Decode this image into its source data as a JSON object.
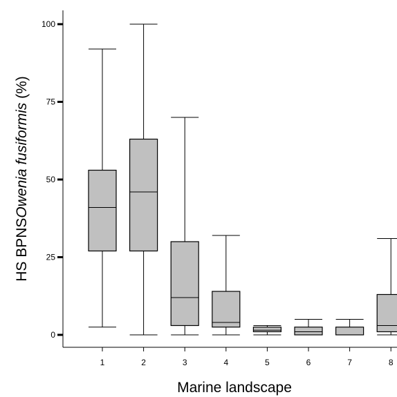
{
  "chart_data": {
    "type": "box",
    "xlabel": "Marine landscape",
    "ylabel": {
      "prefix": "HS BPNS",
      "species": "Owenia fusiformis",
      "suffix": " (%)"
    },
    "ylim": [
      0,
      100
    ],
    "yticks": [
      0,
      25,
      50,
      75,
      100
    ],
    "categories": [
      "1",
      "2",
      "3",
      "4",
      "5",
      "6",
      "7",
      "8"
    ],
    "boxes": [
      {
        "category": "1",
        "min": 2.5,
        "q1": 27,
        "median": 41,
        "q3": 53,
        "max": 92
      },
      {
        "category": "2",
        "min": 0,
        "q1": 27,
        "median": 46,
        "q3": 63,
        "max": 100
      },
      {
        "category": "3",
        "min": 0,
        "q1": 3,
        "median": 12,
        "q3": 30,
        "max": 70
      },
      {
        "category": "4",
        "min": 0,
        "q1": 2.5,
        "median": 4,
        "q3": 14,
        "max": 32
      },
      {
        "category": "5",
        "min": 0,
        "q1": 1,
        "median": 1.5,
        "q3": 2.5,
        "max": 3
      },
      {
        "category": "6",
        "min": 0,
        "q1": 0,
        "median": 1,
        "q3": 2.5,
        "max": 5
      },
      {
        "category": "7",
        "min": 0,
        "q1": 0,
        "median": 0,
        "q3": 2.5,
        "max": 5
      },
      {
        "category": "8",
        "min": 0,
        "q1": 1,
        "median": 3,
        "q3": 13,
        "max": 31
      }
    ],
    "box_fill": "#c0c0c0",
    "line_color": "#000000",
    "grid": false
  }
}
